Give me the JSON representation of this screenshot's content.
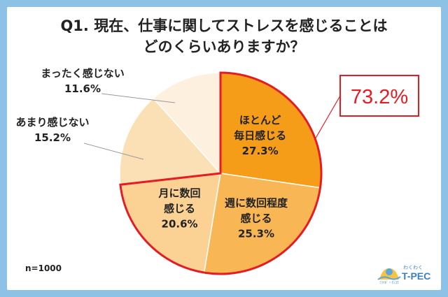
{
  "title_lines": [
    "Q1. 現在、仕事に関してストレスを感じることは",
    "どのくらいありますか？"
  ],
  "footnote": "n=1000",
  "callout": "73.2%",
  "logo": {
    "small_text": "わくわく",
    "brand": "T-PEC",
    "tagline": "ﾐﾗｲｶﾞ・ｹﾝｺｳ"
  },
  "colors": {
    "background_frame": "#8ec1e6",
    "highlight_outline": "#e51c23",
    "slice_1": "#f59d18",
    "slice_2": "#f8b754",
    "slice_3": "#fbd294",
    "slice_4": "#fbe0b5",
    "slice_5": "#fdf0df"
  },
  "chart_data": {
    "type": "pie",
    "slices": [
      {
        "label": [
          "ほとんど",
          "毎日感じる"
        ],
        "value": 27.3,
        "value_text": "27.3%"
      },
      {
        "label": [
          "週に数回程度",
          "感じる"
        ],
        "value": 25.3,
        "value_text": "25.3%"
      },
      {
        "label": [
          "月に数回",
          "感じる"
        ],
        "value": 20.6,
        "value_text": "20.6%"
      },
      {
        "label": [
          "あまり感じない"
        ],
        "value": 15.2,
        "value_text": "15.2%"
      },
      {
        "label": [
          "まったく感じない"
        ],
        "value": 11.6,
        "value_text": "11.6%"
      }
    ],
    "start": "12 o'clock",
    "direction": "clockwise",
    "highlighted_slices": [
      0,
      1,
      2
    ],
    "highlighted_total": 73.2
  }
}
